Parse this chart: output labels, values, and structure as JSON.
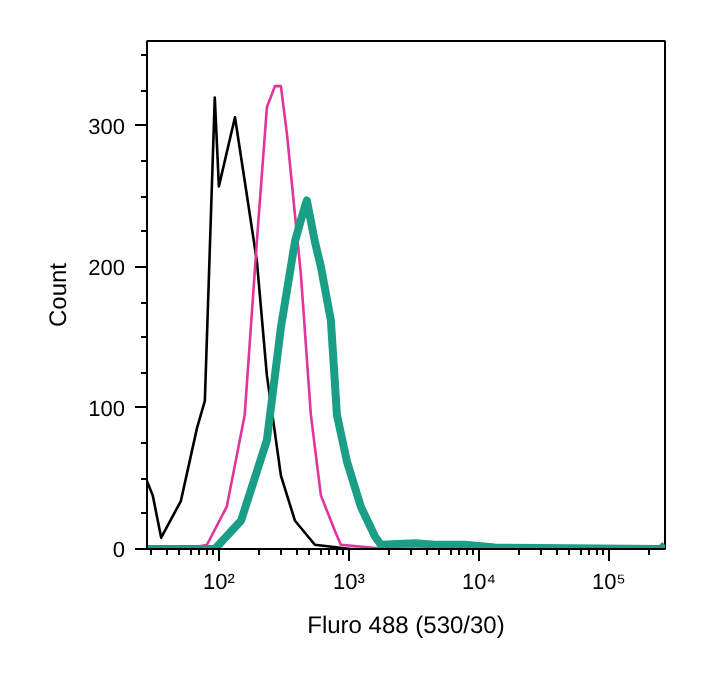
{
  "chart_data": {
    "type": "line",
    "xlabel": "Fluro 488 (530/30)",
    "ylabel": "Count",
    "log": "x",
    "xlim": [
      28,
      270000
    ],
    "ylim": [
      0,
      360
    ],
    "xticks": [
      {
        "value": 100,
        "label": "10²"
      },
      {
        "value": 1000,
        "label": "10³"
      },
      {
        "value": 10000,
        "label": "10⁴"
      },
      {
        "value": 100000,
        "label": "10⁵"
      }
    ],
    "yticks": [
      0,
      100,
      200,
      300
    ],
    "grid": false,
    "marker": "none",
    "line_style": "solid",
    "series": [
      {
        "color": "#000000",
        "x": [
          28,
          31,
          36,
          51,
          68,
          78,
          93,
          100,
          133,
          164,
          196,
          234,
          300,
          385,
          547,
          1035,
          270000
        ],
        "values": [
          48,
          38,
          8,
          34,
          86,
          105,
          320,
          257,
          306,
          251,
          204,
          123,
          52,
          20,
          3,
          0,
          0
        ]
      },
      {
        "color": "#e0359a",
        "x": [
          28,
          57,
          81,
          115,
          158,
          196,
          234,
          270,
          300,
          334,
          427,
          510,
          609,
          780,
          867,
          1960,
          270000
        ],
        "values": [
          0,
          0,
          3,
          30,
          95,
          218,
          313,
          328,
          328,
          294,
          195,
          95,
          38,
          13,
          3,
          0,
          0
        ]
      },
      {
        "color": "#1a9e86",
        "x": [
          28,
          93,
          148,
          234,
          300,
          385,
          427,
          475,
          547,
          609,
          727,
          809,
          966,
          1236,
          1585,
          1763,
          3220,
          4590,
          7800,
          13270,
          251000,
          270000
        ],
        "values": [
          0,
          0,
          20,
          77,
          157,
          218,
          233,
          247,
          218,
          200,
          162,
          95,
          62,
          30,
          9,
          3,
          4,
          3,
          3,
          1,
          0,
          3
        ]
      }
    ]
  }
}
